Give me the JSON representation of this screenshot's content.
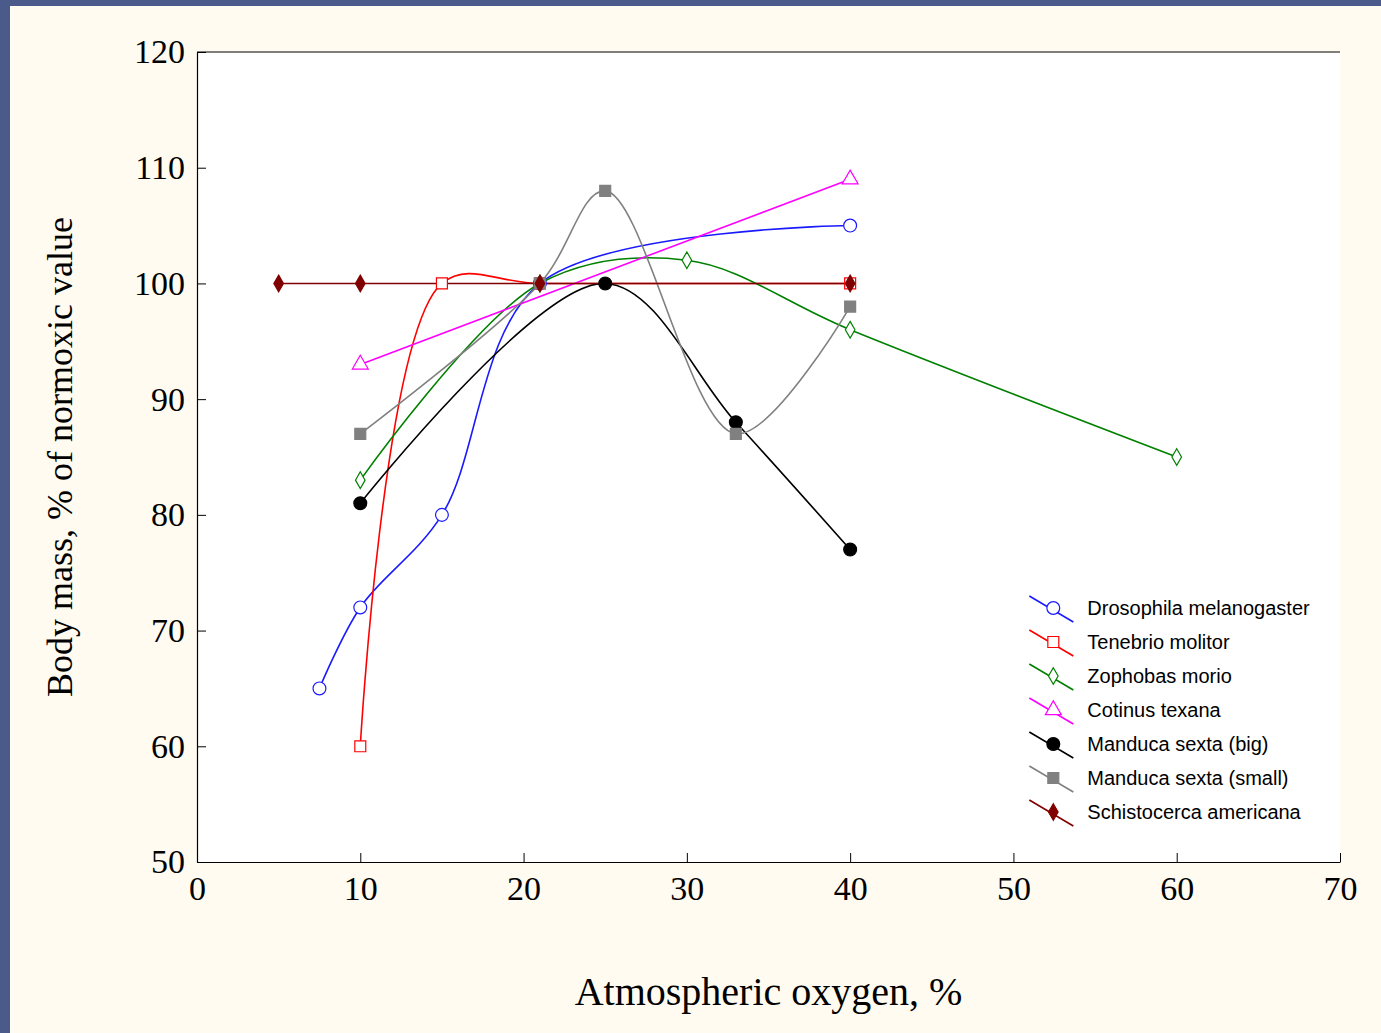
{
  "chart_data": {
    "type": "line",
    "x_label": "Atmospheric oxygen, %",
    "y_label": "Body mass, % of normoxic value",
    "xlim": [
      0,
      70
    ],
    "xticks": [
      0,
      10,
      20,
      30,
      40,
      50,
      60,
      70
    ],
    "ylim": [
      50,
      120
    ],
    "yticks": [
      50,
      60,
      70,
      80,
      90,
      100,
      110,
      120
    ],
    "legend": "lower right",
    "series": [
      {
        "name": "Drosophila melanogaster",
        "color": "#1a1aff",
        "marker": "circle-open",
        "x": [
          7.5,
          10,
          15,
          21,
          40
        ],
        "values": [
          65,
          72,
          80,
          100,
          105
        ]
      },
      {
        "name": "Tenebrio molitor",
        "color": "#ff0000",
        "marker": "square-open",
        "x": [
          10,
          15,
          21,
          40
        ],
        "values": [
          60,
          100,
          100,
          100
        ]
      },
      {
        "name": "Zophobas morio",
        "color": "#008000",
        "marker": "diamond-open",
        "x": [
          10,
          21,
          30,
          40,
          60
        ],
        "values": [
          83,
          100,
          102,
          96,
          85
        ]
      },
      {
        "name": "Cotinus texana",
        "color": "#ff00ff",
        "marker": "triangle-open",
        "x": [
          10,
          40
        ],
        "values": [
          93,
          109
        ]
      },
      {
        "name": "Manduca sexta (big)",
        "color": "#000000",
        "marker": "circle",
        "x": [
          10,
          25,
          33,
          40
        ],
        "values": [
          81,
          100,
          88,
          77
        ]
      },
      {
        "name": "Manduca sexta (small)",
        "color": "#808080",
        "marker": "square",
        "x": [
          10,
          21,
          25,
          33,
          40
        ],
        "values": [
          87,
          100,
          108,
          87,
          98
        ]
      },
      {
        "name": "Schistocerca americana",
        "color": "#800000",
        "marker": "diamond",
        "x": [
          5,
          10,
          21,
          40
        ],
        "values": [
          100,
          100,
          100,
          100
        ]
      }
    ]
  }
}
